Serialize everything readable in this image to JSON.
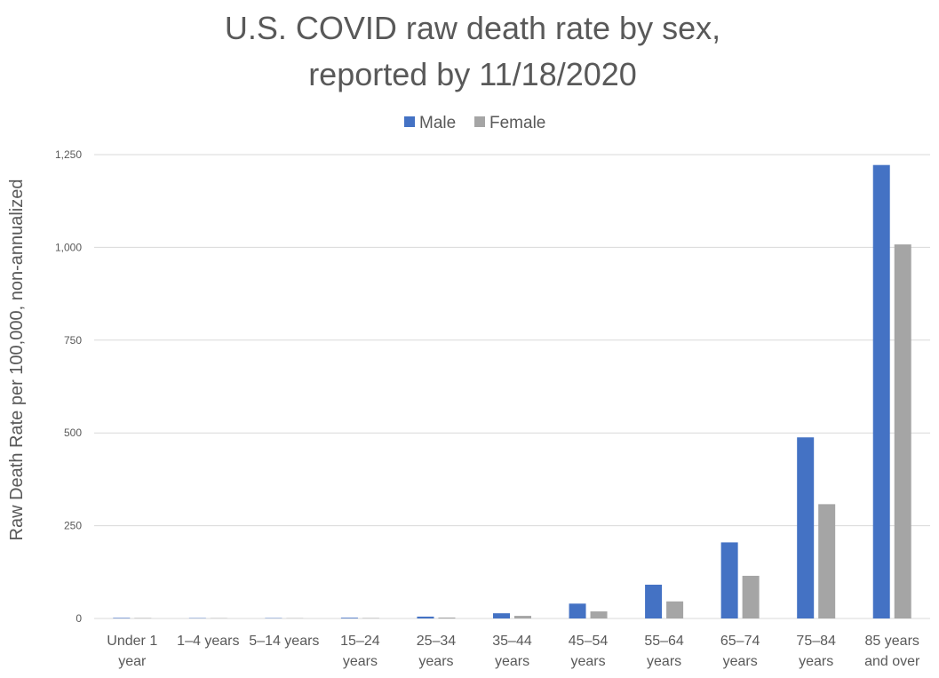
{
  "chart_data": {
    "type": "bar",
    "title_lines": [
      "U.S. COVID raw death rate by sex,",
      "reported by 11/18/2020"
    ],
    "ylabel": "Raw Death Rate per 100,000, non-annualized",
    "xlabel": "",
    "ylim": [
      0,
      1250
    ],
    "yticks": [
      0,
      250,
      500,
      750,
      1000,
      1250
    ],
    "ytick_labels": [
      "0",
      "250",
      "500",
      "750",
      "1,000",
      "1,250"
    ],
    "grid": true,
    "legend_position": "top-center",
    "categories": [
      [
        "Under 1",
        "year"
      ],
      [
        "1–4 years"
      ],
      [
        "5–14 years"
      ],
      [
        "15–24",
        "years"
      ],
      [
        "25–34",
        "years"
      ],
      [
        "35–44",
        "years"
      ],
      [
        "45–54",
        "years"
      ],
      [
        "55–64",
        "years"
      ],
      [
        "65–74",
        "years"
      ],
      [
        "75–84",
        "years"
      ],
      [
        "85 years",
        "and over"
      ]
    ],
    "series": [
      {
        "name": "Male",
        "color": "#4472c4",
        "values": [
          1.5,
          1,
          1,
          2,
          5,
          14,
          40,
          91,
          205,
          488,
          1222
        ]
      },
      {
        "name": "Female",
        "color": "#a5a5a5",
        "values": [
          1.2,
          0.8,
          0.7,
          1.2,
          2.5,
          7,
          19,
          46,
          115,
          308,
          1008
        ]
      }
    ]
  }
}
